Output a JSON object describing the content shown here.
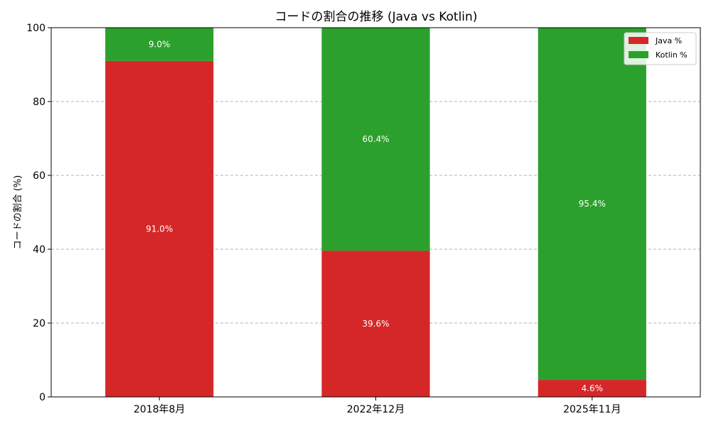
{
  "chart_data": {
    "type": "bar",
    "stacked": true,
    "title": "コードの割合の推移 (Java vs Kotlin)",
    "xlabel": "",
    "ylabel": "コードの割合 (%)",
    "categories": [
      "2018年8月",
      "2022年12月",
      "2025年11月"
    ],
    "series": [
      {
        "name": "Java %",
        "values": [
          91.0,
          39.6,
          4.6
        ],
        "labels": [
          "91.0%",
          "39.6%",
          "4.6%"
        ],
        "color": "#d62728"
      },
      {
        "name": "Kotlin %",
        "values": [
          9.0,
          60.4,
          95.4
        ],
        "labels": [
          "9.0%",
          "60.4%",
          "95.4%"
        ],
        "color": "#2ca02c"
      }
    ],
    "ylim": [
      0,
      100
    ],
    "yticks": [
      "0",
      "20",
      "40",
      "60",
      "80",
      "100"
    ],
    "grid": "y-dashed",
    "legend_position": "top-right"
  }
}
